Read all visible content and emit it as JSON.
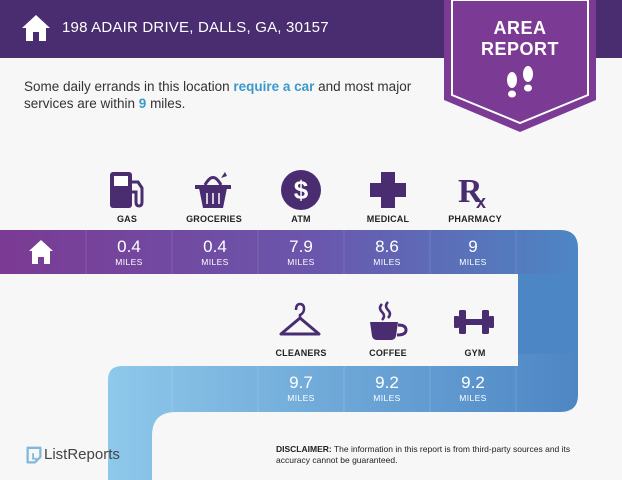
{
  "header": {
    "address": "198 ADAIR DRIVE, DALLS, GA, 30157"
  },
  "badge": {
    "line1": "AREA",
    "line2": "REPORT"
  },
  "intro": {
    "part1": "Some daily errands in this location ",
    "highlight1": "require a car",
    "part2": " and most major services are within ",
    "highlight2": "9",
    "part3": " miles."
  },
  "services_row1": [
    {
      "label": "GAS",
      "icon": "gas-pump-icon",
      "distance": "0.4",
      "unit": "MILES"
    },
    {
      "label": "GROCERIES",
      "icon": "grocery-basket-icon",
      "distance": "0.4",
      "unit": "MILES"
    },
    {
      "label": "ATM",
      "icon": "dollar-icon",
      "distance": "7.9",
      "unit": "MILES"
    },
    {
      "label": "MEDICAL",
      "icon": "medical-cross-icon",
      "distance": "8.6",
      "unit": "MILES"
    },
    {
      "label": "PHARMACY",
      "icon": "rx-icon",
      "distance": "9",
      "unit": "MILES"
    }
  ],
  "services_row2": [
    {
      "label": "CLEANERS",
      "icon": "hanger-icon",
      "distance": "9.7",
      "unit": "MILES"
    },
    {
      "label": "COFFEE",
      "icon": "coffee-cup-icon",
      "distance": "9.2",
      "unit": "MILES"
    },
    {
      "label": "GYM",
      "icon": "dumbbell-icon",
      "distance": "9.2",
      "unit": "MILES"
    }
  ],
  "footer": {
    "brand": "ListReports",
    "disclaimer_label": "DISCLAIMER:",
    "disclaimer_text": " The information in this report is from third-party sources and its accuracy cannot be guaranteed."
  },
  "colors": {
    "header": "#4a2c70",
    "accent_text": "#3a9ac9"
  }
}
